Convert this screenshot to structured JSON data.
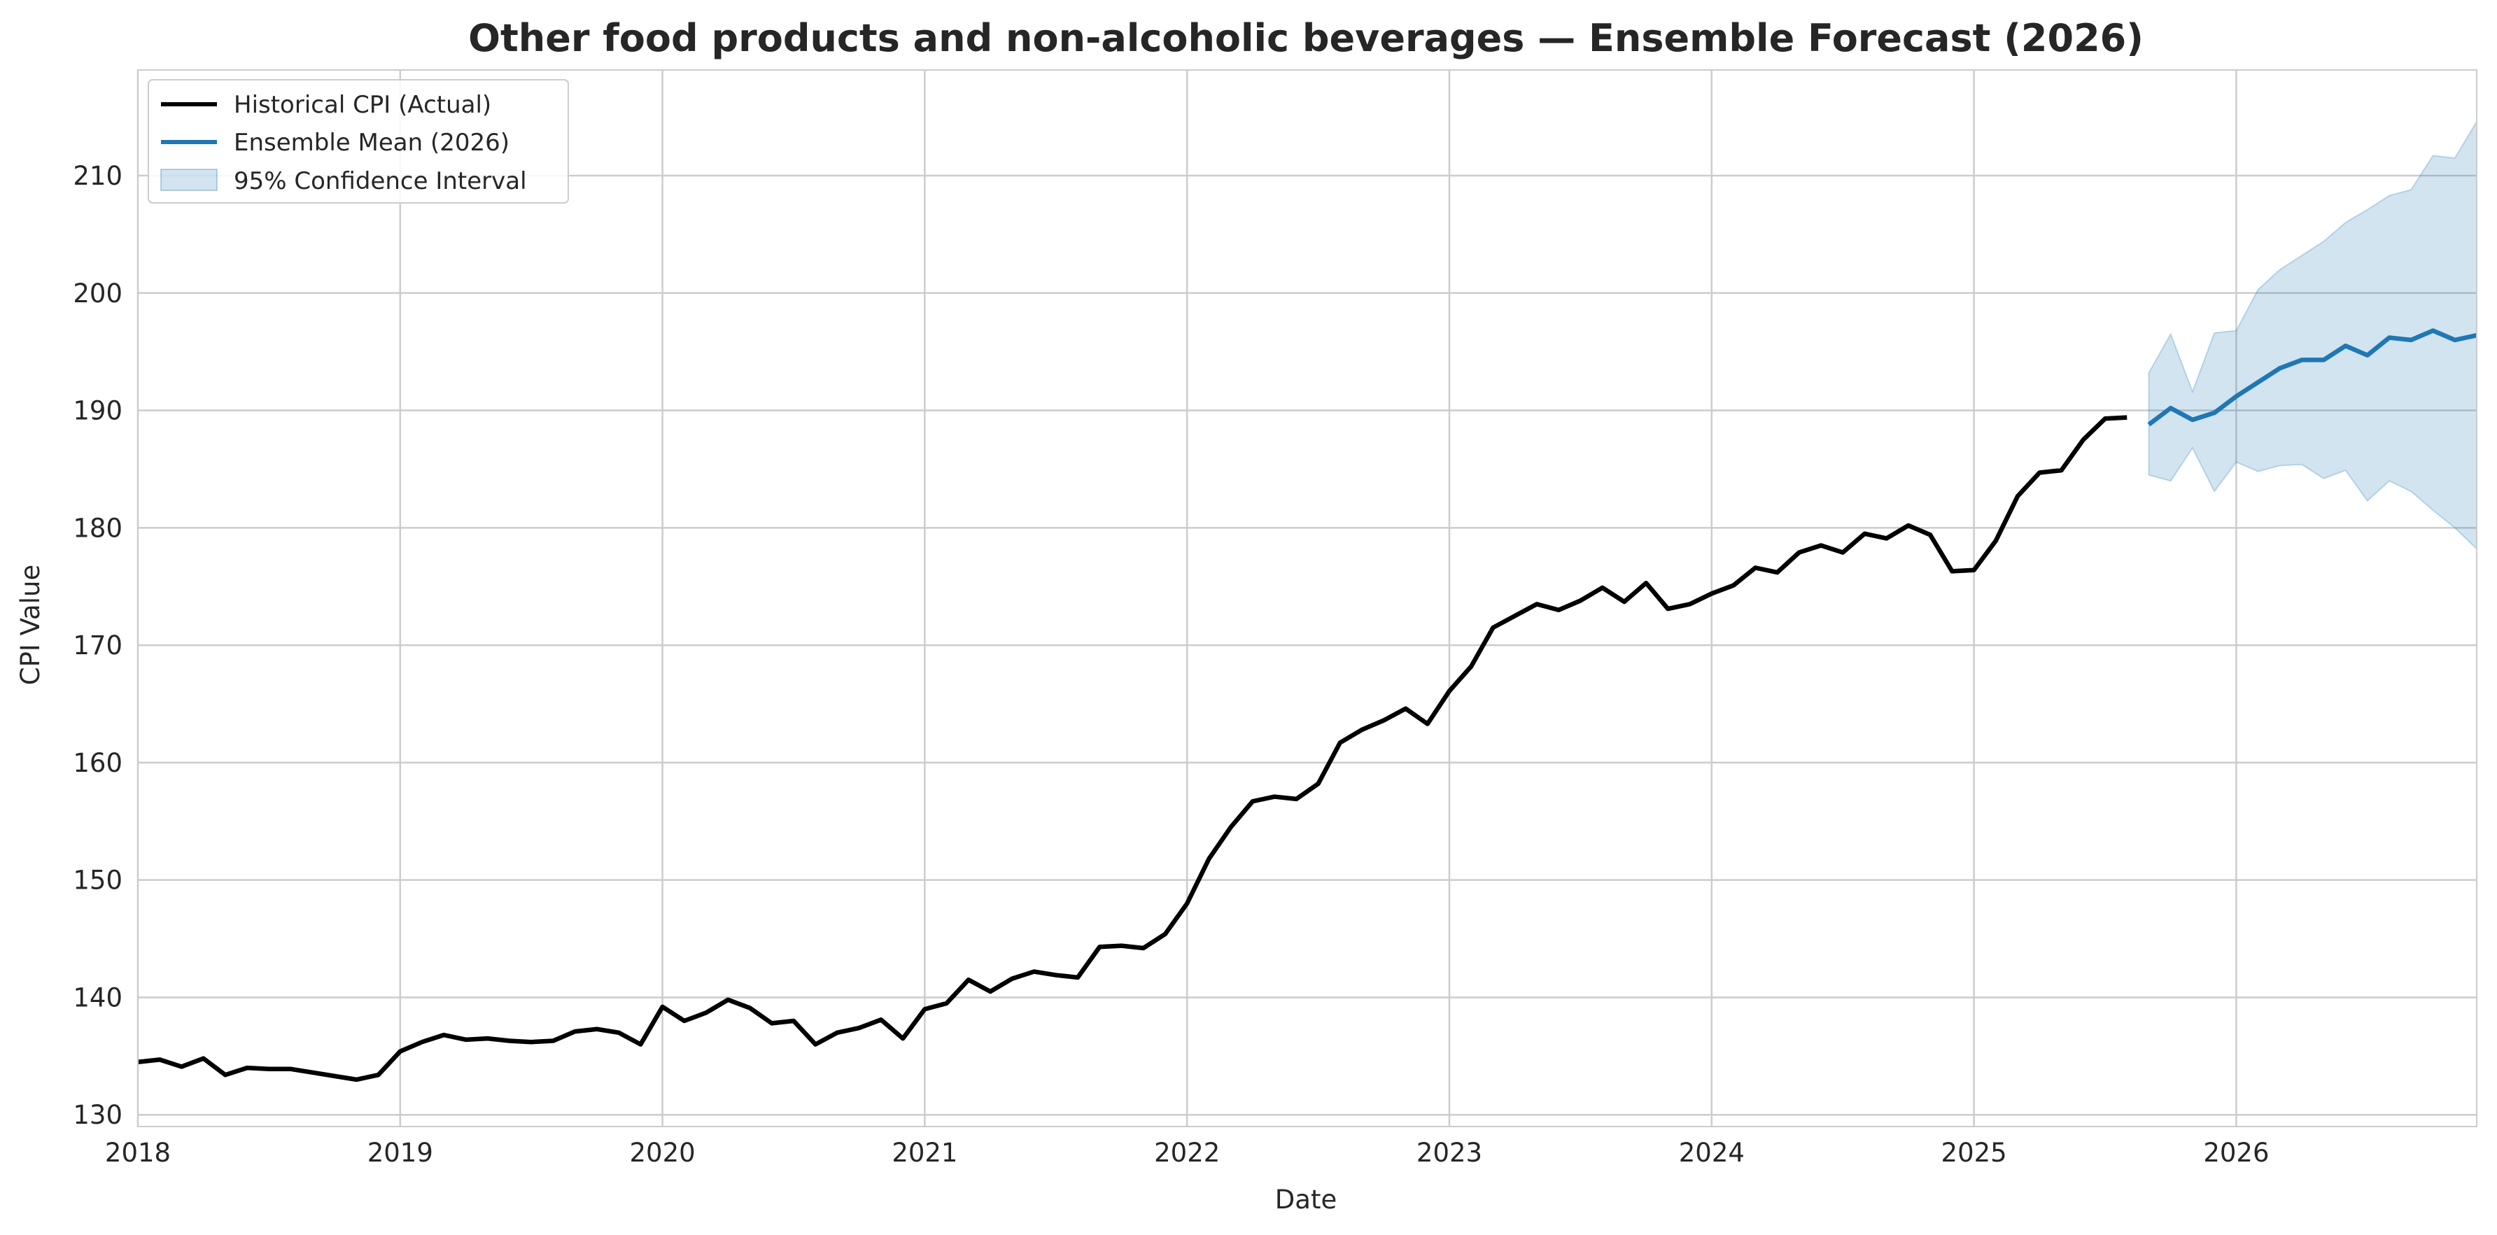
{
  "chart_data": {
    "type": "line",
    "title": "Other food products and non-alcoholic beverages — Ensemble Forecast (2026)",
    "xlabel": "Date",
    "ylabel": "CPI Value",
    "xlim": [
      "2018-01",
      "2026-12"
    ],
    "ylim": [
      129,
      219
    ],
    "grid": true,
    "legend_position": "top-left",
    "x_ticks": [
      "2018",
      "2019",
      "2020",
      "2021",
      "2022",
      "2023",
      "2024",
      "2025",
      "2026"
    ],
    "y_ticks": [
      130,
      140,
      150,
      160,
      170,
      180,
      190,
      200,
      210
    ],
    "colors": {
      "historical": "#000000",
      "mean": "#1f77b4",
      "ci_fill": "#1f77b4",
      "grid": "#cccccc",
      "spine": "#cccccc"
    },
    "series": [
      {
        "name": "Historical CPI (Actual)",
        "x": [
          "2018-01",
          "2018-02",
          "2018-03",
          "2018-04",
          "2018-05",
          "2018-06",
          "2018-07",
          "2018-08",
          "2018-09",
          "2018-10",
          "2018-11",
          "2018-12",
          "2019-01",
          "2019-02",
          "2019-03",
          "2019-04",
          "2019-05",
          "2019-06",
          "2019-07",
          "2019-08",
          "2019-09",
          "2019-10",
          "2019-11",
          "2019-12",
          "2020-01",
          "2020-02",
          "2020-03",
          "2020-04",
          "2020-05",
          "2020-06",
          "2020-07",
          "2020-08",
          "2020-09",
          "2020-10",
          "2020-11",
          "2020-12",
          "2021-01",
          "2021-02",
          "2021-03",
          "2021-04",
          "2021-05",
          "2021-06",
          "2021-07",
          "2021-08",
          "2021-09",
          "2021-10",
          "2021-11",
          "2021-12",
          "2022-01",
          "2022-02",
          "2022-03",
          "2022-04",
          "2022-05",
          "2022-06",
          "2022-07",
          "2022-08",
          "2022-09",
          "2022-10",
          "2022-11",
          "2022-12",
          "2023-01",
          "2023-02",
          "2023-03",
          "2023-04",
          "2023-05",
          "2023-06",
          "2023-07",
          "2023-08",
          "2023-09",
          "2023-10",
          "2023-11",
          "2023-12",
          "2024-01",
          "2024-02",
          "2024-03",
          "2024-04",
          "2024-05",
          "2024-06",
          "2024-07",
          "2024-08",
          "2024-09",
          "2024-10",
          "2024-11",
          "2024-12",
          "2025-01",
          "2025-02",
          "2025-03",
          "2025-04",
          "2025-05",
          "2025-06",
          "2025-07",
          "2025-08"
        ],
        "values": [
          134.5,
          134.7,
          134.1,
          134.8,
          133.4,
          134.0,
          133.9,
          133.9,
          133.6,
          133.3,
          133.0,
          133.4,
          135.4,
          136.2,
          136.8,
          136.4,
          136.5,
          136.3,
          136.2,
          136.3,
          137.1,
          137.3,
          137.0,
          136.0,
          139.2,
          138.0,
          138.7,
          139.8,
          139.1,
          137.8,
          138.0,
          136.0,
          137.0,
          137.4,
          138.1,
          136.5,
          139.0,
          139.5,
          141.5,
          140.5,
          141.6,
          142.2,
          141.9,
          141.7,
          144.3,
          144.4,
          144.2,
          145.4,
          148.0,
          151.8,
          154.5,
          156.7,
          157.1,
          156.9,
          158.2,
          161.7,
          162.8,
          163.6,
          164.6,
          163.3,
          166.1,
          168.2,
          171.5,
          172.5,
          173.5,
          173.0,
          173.8,
          174.9,
          173.7,
          175.3,
          173.1,
          173.5,
          174.4,
          175.1,
          176.6,
          176.2,
          177.9,
          178.5,
          177.9,
          179.5,
          179.1,
          180.2,
          179.4,
          176.3,
          176.4,
          178.9,
          182.7,
          184.7,
          184.9,
          187.5,
          189.3,
          189.4
        ]
      },
      {
        "name": "Ensemble Mean (2026)",
        "x": [
          "2025-09",
          "2025-10",
          "2025-11",
          "2025-12",
          "2026-01",
          "2026-02",
          "2026-03",
          "2026-04",
          "2026-05",
          "2026-06",
          "2026-07",
          "2026-08",
          "2026-09",
          "2026-10",
          "2026-11",
          "2026-12"
        ],
        "values": [
          188.8,
          190.2,
          189.2,
          189.8,
          191.2,
          192.4,
          193.6,
          194.3,
          194.3,
          195.5,
          194.7,
          196.2,
          196.0,
          196.8,
          196.0,
          196.4
        ]
      }
    ],
    "confidence_interval": {
      "name": "95% Confidence Interval",
      "x": [
        "2025-09",
        "2025-10",
        "2025-11",
        "2025-12",
        "2026-01",
        "2026-02",
        "2026-03",
        "2026-04",
        "2026-05",
        "2026-06",
        "2026-07",
        "2026-08",
        "2026-09",
        "2026-10",
        "2026-11",
        "2026-12"
      ],
      "lower": [
        184.5,
        184.0,
        186.8,
        183.1,
        185.6,
        184.8,
        185.3,
        185.4,
        184.2,
        184.9,
        182.3,
        184.0,
        183.1,
        181.5,
        180.0,
        178.2
      ],
      "upper": [
        193.2,
        196.5,
        191.6,
        196.6,
        196.8,
        200.3,
        202.0,
        203.2,
        204.4,
        206.0,
        207.1,
        208.3,
        208.8,
        211.7,
        211.5,
        214.6
      ]
    }
  }
}
